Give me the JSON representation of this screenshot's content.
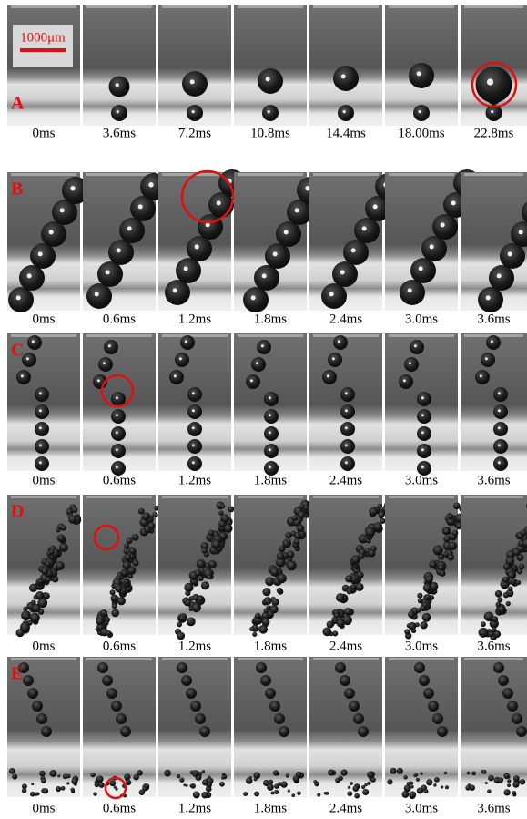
{
  "scale_bar": "1000μm",
  "panels": [
    {
      "label": "A",
      "times": [
        "0ms",
        "3.6ms",
        "7.2ms",
        "10.8ms",
        "14.4ms",
        "18.00ms",
        "22.8ms"
      ]
    },
    {
      "label": "B",
      "times": [
        "0ms",
        "0.6ms",
        "1.2ms",
        "1.8ms",
        "2.4ms",
        "3.0ms",
        "3.6ms"
      ]
    },
    {
      "label": "C",
      "times": [
        "0ms",
        "0.6ms",
        "1.2ms",
        "1.8ms",
        "2.4ms",
        "3.0ms",
        "3.6ms"
      ]
    },
    {
      "label": "D",
      "times": [
        "0ms",
        "0.6ms",
        "1.2ms",
        "1.8ms",
        "2.4ms",
        "3.0ms",
        "3.6ms"
      ]
    },
    {
      "label": "E",
      "times": [
        "0ms",
        "0.6ms",
        "1.2ms",
        "1.8ms",
        "2.4ms",
        "3.0ms",
        "3.6ms"
      ]
    }
  ]
}
